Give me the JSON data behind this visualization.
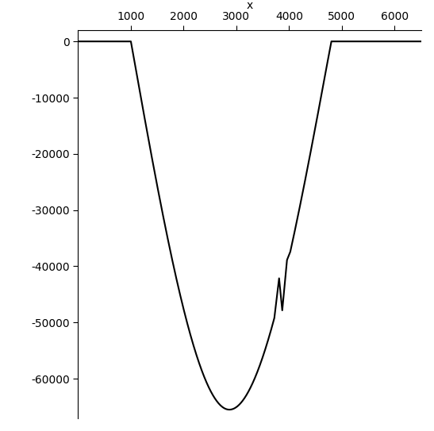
{
  "title": "x",
  "xlim": [
    0,
    6500
  ],
  "ylim": [
    -67000,
    2000
  ],
  "x_ticks": [
    1000,
    2000,
    3000,
    4000,
    5000,
    6000
  ],
  "y_ticks": [
    0,
    -10000,
    -20000,
    -30000,
    -40000,
    -50000,
    -60000
  ],
  "curve_color": "#000000",
  "line_width": 1.5,
  "background_color": "#ffffff",
  "beam_start": 1000,
  "beam_end": 4800,
  "beam_min_x": 2800,
  "beam_min_y": -65500,
  "figsize": [
    5.47,
    5.43
  ],
  "dpi": 100
}
